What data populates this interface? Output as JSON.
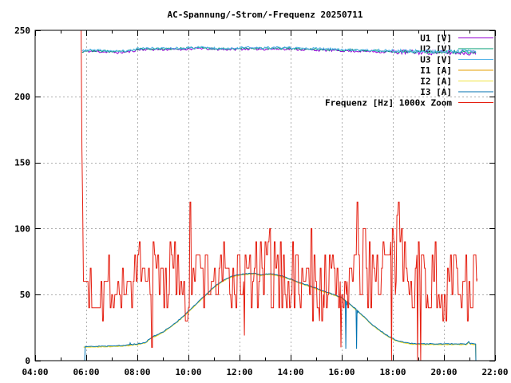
{
  "chart_data": {
    "type": "line",
    "title": "AC-Spannung/-Strom/-Frequenz 20250711",
    "grid": {
      "color": "#b0b0b0",
      "dash": "2,3",
      "on": true
    },
    "border_color": "#000000",
    "background": "#ffffff",
    "x_axis": {
      "min": 4,
      "max": 22,
      "tick_hours": [
        4,
        6,
        8,
        10,
        12,
        14,
        16,
        18,
        20,
        22
      ],
      "tick_labels": [
        "04:00",
        "06:00",
        "08:00",
        "10:00",
        "12:00",
        "14:00",
        "16:00",
        "18:00",
        "20:00",
        "22:00"
      ],
      "minor_tick_hours": [
        5,
        7,
        9,
        11,
        13,
        15,
        17,
        19,
        21
      ]
    },
    "y_axis": {
      "min": 0,
      "max": 250,
      "tick_values": [
        0,
        50,
        100,
        150,
        200,
        250
      ],
      "tick_labels": [
        "0",
        "50",
        "100",
        "150",
        "200",
        "250"
      ]
    },
    "legend": {
      "position": "top-right",
      "boxed": false
    },
    "trends": {
      "voltage_trend": [
        [
          5.84,
          233.8
        ],
        [
          6.0,
          234.6
        ],
        [
          6.4,
          234.4
        ],
        [
          6.9,
          234.0
        ],
        [
          7.3,
          233.6
        ],
        [
          7.7,
          234.2
        ],
        [
          8.0,
          235.6
        ],
        [
          8.3,
          236.0
        ],
        [
          9.0,
          235.9
        ],
        [
          9.6,
          236.1
        ],
        [
          10.2,
          236.4
        ],
        [
          10.5,
          236.9
        ],
        [
          10.9,
          236.1
        ],
        [
          11.6,
          236.0
        ],
        [
          12.3,
          236.4
        ],
        [
          13.1,
          236.2
        ],
        [
          13.9,
          236.4
        ],
        [
          14.6,
          235.8
        ],
        [
          15.3,
          235.4
        ],
        [
          16.1,
          235.0
        ],
        [
          16.9,
          234.6
        ],
        [
          17.7,
          234.2
        ],
        [
          18.5,
          233.9
        ],
        [
          19.3,
          233.7
        ],
        [
          20.1,
          233.4
        ],
        [
          20.7,
          233.6
        ],
        [
          21.25,
          233.0
        ]
      ],
      "current_trend": [
        [
          5.9,
          10.4
        ],
        [
          6.5,
          10.6
        ],
        [
          7.0,
          10.9
        ],
        [
          7.5,
          11.3
        ],
        [
          7.9,
          12.2
        ],
        [
          8.3,
          13.3
        ],
        [
          8.5,
          16.5
        ],
        [
          8.6,
          17.8
        ],
        [
          8.8,
          19.5
        ],
        [
          9.0,
          21.5
        ],
        [
          9.3,
          25.5
        ],
        [
          9.6,
          30
        ],
        [
          10.0,
          37
        ],
        [
          10.4,
          44.5
        ],
        [
          10.8,
          52
        ],
        [
          11.1,
          57
        ],
        [
          11.4,
          61
        ],
        [
          11.7,
          63.5
        ],
        [
          12.0,
          65
        ],
        [
          12.3,
          65.5
        ],
        [
          12.6,
          66
        ],
        [
          12.8,
          64.5
        ],
        [
          13.1,
          65.5
        ],
        [
          13.4,
          65
        ],
        [
          13.7,
          63.5
        ],
        [
          14.0,
          61.5
        ],
        [
          14.4,
          58.5
        ],
        [
          14.8,
          56
        ],
        [
          15.2,
          53
        ],
        [
          15.6,
          50.5
        ],
        [
          16.0,
          47.5
        ],
        [
          16.3,
          43
        ],
        [
          16.6,
          38
        ],
        [
          16.9,
          32.5
        ],
        [
          17.2,
          27
        ],
        [
          17.5,
          22.5
        ],
        [
          17.8,
          18.5
        ],
        [
          18.1,
          15.5
        ],
        [
          18.4,
          13.8
        ],
        [
          18.7,
          12.8
        ],
        [
          19.2,
          12.5
        ],
        [
          20.0,
          12.4
        ],
        [
          20.9,
          12.4
        ],
        [
          20.97,
          14.2
        ],
        [
          21.03,
          12.6
        ],
        [
          21.2,
          12.5
        ],
        [
          21.24,
          12.5
        ],
        [
          21.25,
          0
        ]
      ],
      "freq_trend": [
        [
          5.8,
          70
        ],
        [
          6.0,
          58
        ],
        [
          6.4,
          52
        ],
        [
          7.0,
          55
        ],
        [
          7.6,
          57
        ],
        [
          8.2,
          60
        ],
        [
          8.8,
          64
        ],
        [
          9.4,
          66
        ],
        [
          10.0,
          66
        ],
        [
          10.6,
          64
        ],
        [
          11.2,
          62
        ],
        [
          11.8,
          60
        ],
        [
          12.4,
          62
        ],
        [
          13.0,
          64
        ],
        [
          13.6,
          62
        ],
        [
          14.2,
          58
        ],
        [
          14.8,
          60
        ],
        [
          15.4,
          58
        ],
        [
          16.0,
          58
        ],
        [
          16.6,
          68
        ],
        [
          17.2,
          72
        ],
        [
          17.8,
          74
        ],
        [
          18.4,
          78
        ],
        [
          19.0,
          72
        ],
        [
          19.4,
          60
        ],
        [
          20.0,
          58
        ],
        [
          20.6,
          60
        ],
        [
          21.3,
          62
        ]
      ],
      "freq_amp": [
        [
          5.8,
          28
        ],
        [
          6.2,
          30
        ],
        [
          6.8,
          20
        ],
        [
          7.6,
          18
        ],
        [
          8.2,
          26
        ],
        [
          9.0,
          30
        ],
        [
          10.0,
          30
        ],
        [
          11.0,
          30
        ],
        [
          12.0,
          28
        ],
        [
          13.0,
          30
        ],
        [
          14.0,
          26
        ],
        [
          15.0,
          28
        ],
        [
          16.0,
          30
        ],
        [
          17.0,
          30
        ],
        [
          18.0,
          30
        ],
        [
          19.0,
          32
        ],
        [
          19.6,
          26
        ],
        [
          20.4,
          26
        ],
        [
          21.3,
          30
        ]
      ]
    },
    "series": [
      {
        "id": "U1",
        "label": "U1 [V]",
        "color": "#9400D3",
        "start": 5.84,
        "end": 21.25,
        "step": 0.045,
        "hold": 1,
        "seed": 11,
        "offset": -0.4,
        "mean": "voltage_trend",
        "amp": [
          [
            5.84,
            0.9
          ],
          [
            17.5,
            1.0
          ],
          [
            18.0,
            1.8
          ],
          [
            21.25,
            1.8
          ]
        ]
      },
      {
        "id": "U2",
        "label": "U2 [V]",
        "color": "#009E73",
        "start": 5.84,
        "end": 21.25,
        "step": 0.045,
        "hold": 1,
        "seed": 23,
        "offset": 0.1,
        "mean": "voltage_trend",
        "amp": [
          [
            5.84,
            0.8
          ],
          [
            18.0,
            0.8
          ],
          [
            18.2,
            1.2
          ],
          [
            21.25,
            1.2
          ]
        ]
      },
      {
        "id": "U3",
        "label": "U3 [V]",
        "color": "#56B4E9",
        "start": 5.84,
        "end": 21.25,
        "step": 0.045,
        "hold": 1,
        "seed": 37,
        "offset": 0.5,
        "mean": "voltage_trend",
        "amp": [
          [
            5.84,
            0.8
          ],
          [
            18.0,
            1.0
          ],
          [
            18.2,
            1.4
          ],
          [
            21.25,
            1.4
          ]
        ]
      },
      {
        "id": "I1",
        "label": "I1 [A]",
        "color": "#E69F00",
        "start": 5.9,
        "end": 21.25,
        "step": 0.02,
        "hold": 3,
        "seed": 51,
        "offset": 0,
        "mean": "current_trend",
        "amp": 0.25
      },
      {
        "id": "I2",
        "label": "I2 [A]",
        "color": "#F0E442",
        "start": 5.9,
        "end": 21.25,
        "step": 0.02,
        "hold": 3,
        "seed": 67,
        "offset": -0.3,
        "mean": "current_trend",
        "amp": 0.25
      },
      {
        "id": "I3",
        "label": "I3 [A]",
        "color": "#0072B2",
        "start": 5.94,
        "end": 21.25,
        "step": 0.02,
        "hold": 3,
        "seed": 83,
        "offset": 0.25,
        "mean": "current_trend",
        "amp": 0.3,
        "events": [
          [
            5.94,
            0.3
          ],
          [
            7.72,
            13.4
          ],
          [
            16.16,
            9
          ],
          [
            16.2,
            42
          ],
          [
            16.58,
            9
          ],
          [
            16.62,
            36
          ],
          [
            21.25,
            0
          ]
        ]
      },
      {
        "id": "F",
        "label": "Frequenz [Hz] 1000x Zoom",
        "color": "#E51E10",
        "start": 5.8,
        "end": 21.3,
        "step": 0.03,
        "hold": 2,
        "seed": 7,
        "offset": 0,
        "mean": "freq_trend",
        "amp": "freq_amp",
        "quantize": 10,
        "clamp": [
          2,
          250
        ],
        "spike_prob": 0.07,
        "spike_scale": 1.8,
        "events": [
          [
            5.8,
            250
          ],
          [
            5.83,
            160
          ],
          [
            5.86,
            120
          ],
          [
            5.89,
            60
          ],
          [
            12.2,
            19
          ],
          [
            15.97,
            10
          ],
          [
            17.94,
            0
          ],
          [
            18.97,
            0
          ],
          [
            19.09,
            0
          ]
        ]
      }
    ]
  }
}
